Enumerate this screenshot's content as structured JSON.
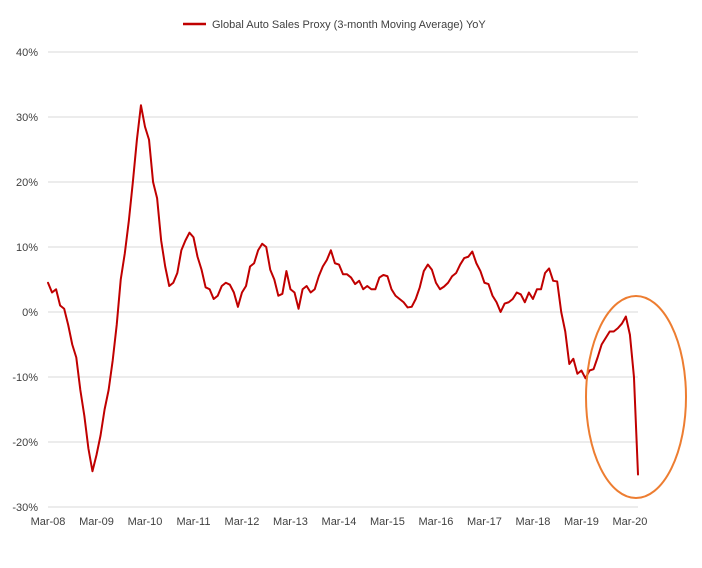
{
  "chart_data": {
    "type": "line",
    "title": "",
    "xlabel": "",
    "ylabel": "",
    "ylim": [
      -30,
      40
    ],
    "yticks": [
      40,
      30,
      20,
      10,
      0,
      -10,
      -20,
      -30
    ],
    "ytick_labels": [
      "40%",
      "30%",
      "20%",
      "10%",
      "0%",
      "-10%",
      "-20%",
      "-30%"
    ],
    "x_tick_labels": [
      "Mar-08",
      "Mar-09",
      "Mar-10",
      "Mar-11",
      "Mar-12",
      "Mar-13",
      "Mar-14",
      "Mar-15",
      "Mar-16",
      "Mar-17",
      "Mar-18",
      "Mar-19",
      "Mar-20"
    ],
    "x_start": "2008-03",
    "grid": true,
    "legend_position": "top",
    "series": [
      {
        "name": "Global Auto Sales Proxy (3-month Moving Average) YoY",
        "color": "#c00000",
        "values": [
          4.5,
          3.0,
          3.5,
          1.0,
          0.5,
          -2.0,
          -5.0,
          -7.0,
          -12.0,
          -16.0,
          -21.0,
          -24.5,
          -22.0,
          -19.0,
          -15.0,
          -12.0,
          -7.5,
          -2.0,
          5.0,
          9.0,
          14.0,
          20.0,
          26.5,
          31.8,
          28.5,
          26.5,
          20.0,
          17.5,
          11.0,
          7.0,
          4.0,
          4.5,
          6.0,
          9.5,
          11.0,
          12.2,
          11.5,
          8.5,
          6.5,
          3.8,
          3.5,
          2.0,
          2.5,
          4.0,
          4.5,
          4.2,
          3.0,
          0.8,
          3.0,
          4.0,
          7.0,
          7.5,
          9.5,
          10.5,
          10.0,
          6.5,
          5.0,
          2.5,
          2.8,
          6.3,
          3.5,
          3.0,
          0.5,
          3.5,
          4.0,
          3.0,
          3.5,
          5.5,
          7.0,
          8.0,
          9.5,
          7.5,
          7.3,
          5.8,
          5.8,
          5.3,
          4.3,
          4.8,
          3.5,
          4.0,
          3.5,
          3.5,
          5.3,
          5.7,
          5.5,
          3.5,
          2.5,
          2.0,
          1.5,
          0.7,
          0.8,
          2.0,
          3.8,
          6.3,
          7.3,
          6.5,
          4.5,
          3.5,
          3.9,
          4.5,
          5.5,
          6.0,
          7.3,
          8.3,
          8.5,
          9.3,
          7.5,
          6.3,
          4.5,
          4.3,
          2.5,
          1.5,
          0.0,
          1.3,
          1.5,
          2.0,
          3.0,
          2.7,
          1.5,
          3.0,
          2.0,
          3.5,
          3.5,
          6.0,
          6.7,
          4.8,
          4.7,
          0.0,
          -3.0,
          -8.0,
          -7.2,
          -9.5,
          -9.0,
          -10.2,
          -9.0,
          -8.8,
          -7.0,
          -5.0,
          -4.0,
          -3.0,
          -3.0,
          -2.5,
          -1.8,
          -0.7,
          -3.5,
          -10.0,
          -25.0
        ]
      }
    ]
  },
  "annotations": {
    "highlight_ellipse_color": "#ed7d31"
  }
}
